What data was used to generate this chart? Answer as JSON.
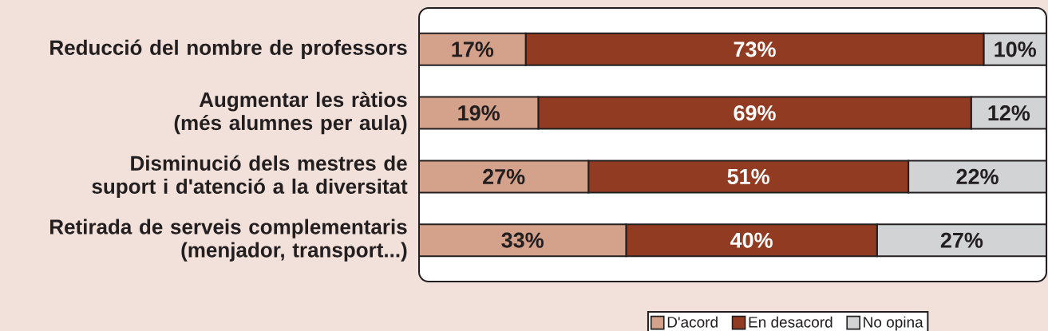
{
  "chart_data": {
    "type": "bar",
    "orientation": "horizontal",
    "stacked": true,
    "categories": [
      "Reducció del nombre de professors",
      "Augmentar les ràtios (més alumnes per aula)",
      "Disminució dels mestres de suport i d'atenció a la diversitat",
      "Retirada de serveis complementaris (menjador, transport...)"
    ],
    "series": [
      {
        "name": "D'acord",
        "color": "#d4a28b",
        "values": [
          17,
          19,
          27,
          33
        ],
        "value_labels": [
          "17%",
          "19%",
          "27%",
          "33%"
        ]
      },
      {
        "name": "En desacord",
        "color": "#913c22",
        "values": [
          73,
          69,
          51,
          40
        ],
        "value_labels": [
          "73%",
          "69%",
          "51%",
          "40%"
        ]
      },
      {
        "name": "No opina",
        "color": "#d1d3d4",
        "values": [
          10,
          12,
          22,
          27
        ],
        "value_labels": [
          "10%",
          "12%",
          "22%",
          "27%"
        ]
      }
    ],
    "xlim": [
      0,
      100
    ],
    "legend": "bottom",
    "tick_labels": "y"
  }
}
